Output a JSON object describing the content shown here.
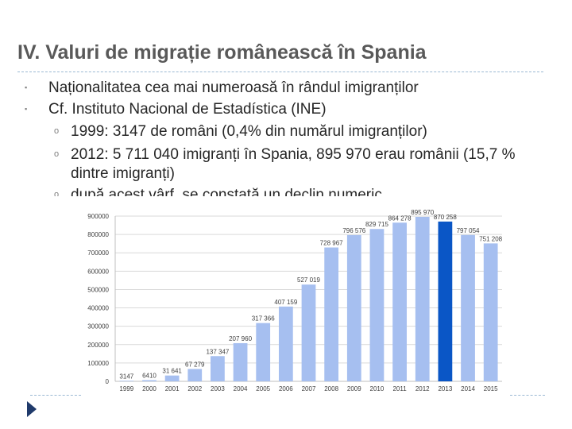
{
  "slide": {
    "title": "IV. Valuri de migrație românească în Spania",
    "bullets": [
      {
        "marker": "▪",
        "text": "Naționalitatea cea mai numeroasă în rândul imigranților"
      },
      {
        "marker": "▪",
        "text": "Cf. Instituto Nacional de Estadística (INE)"
      }
    ],
    "sub_bullets": [
      {
        "marker": "o",
        "text": "1999: 3147 de români (0,4% din numărul imigranților)"
      },
      {
        "marker": "o",
        "text": "2012: 5 711 040 imigranți în Spania, 895 970 erau românii (15,7 % dintre imigranți)"
      },
      {
        "marker": "o",
        "text": "după acest vârf, se constată un declin numeric"
      }
    ]
  },
  "colors": {
    "bar": "#a6bff0",
    "bar_highlight": "#0a56c6",
    "grid": "#d9d9d9",
    "text": "#404040"
  },
  "chart_data": {
    "type": "bar",
    "title": "",
    "xlabel": "",
    "ylabel": "",
    "categories": [
      "1999",
      "2000",
      "2001",
      "2002",
      "2003",
      "2004",
      "2005",
      "2006",
      "2007",
      "2008",
      "2009",
      "2010",
      "2011",
      "2012",
      "2013",
      "2014",
      "2015"
    ],
    "values": [
      3147,
      6410,
      31641,
      67279,
      137347,
      207960,
      317366,
      407159,
      527019,
      728967,
      796576,
      829715,
      864278,
      895970,
      870258,
      797054,
      751208
    ],
    "labels": [
      "3147",
      "6410",
      "31 641",
      "67 279",
      "137 347",
      "207 960",
      "317 366",
      "407 159",
      "527 019",
      "728 967",
      "796 576",
      "829 715",
      "864 278",
      "895 970",
      "870 258",
      "797 054",
      "751 208"
    ],
    "highlight_category": "2013",
    "ylim": [
      0,
      900000
    ],
    "yticks": [
      0,
      100000,
      200000,
      300000,
      400000,
      500000,
      600000,
      700000,
      800000,
      900000
    ],
    "grid": true,
    "legend": "none"
  }
}
